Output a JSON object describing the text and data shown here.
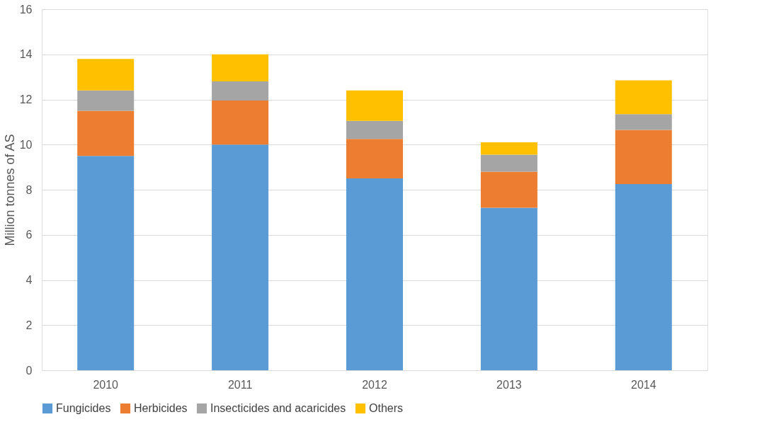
{
  "chart_data": {
    "type": "bar",
    "stacked": true,
    "ylabel": "Million tonnes of AS",
    "categories": [
      "2010",
      "2011",
      "2012",
      "2013",
      "2014"
    ],
    "series": [
      {
        "name": "Fungicides",
        "color": "#5b9bd5",
        "values": [
          9.5,
          10.0,
          8.5,
          7.2,
          8.25
        ]
      },
      {
        "name": "Herbicides",
        "color": "#ed7d31",
        "values": [
          2.0,
          1.95,
          1.75,
          1.6,
          2.4
        ]
      },
      {
        "name": "Insecticides and acaricides",
        "color": "#a5a5a5",
        "values": [
          0.9,
          0.85,
          0.8,
          0.75,
          0.7
        ]
      },
      {
        "name": "Others",
        "color": "#ffc000",
        "values": [
          1.4,
          1.2,
          1.35,
          0.55,
          1.5
        ]
      }
    ],
    "ylim": [
      0,
      16
    ],
    "yticks": [
      0,
      2,
      4,
      6,
      8,
      10,
      12,
      14,
      16
    ],
    "grid": "y",
    "legend": "bottom"
  }
}
